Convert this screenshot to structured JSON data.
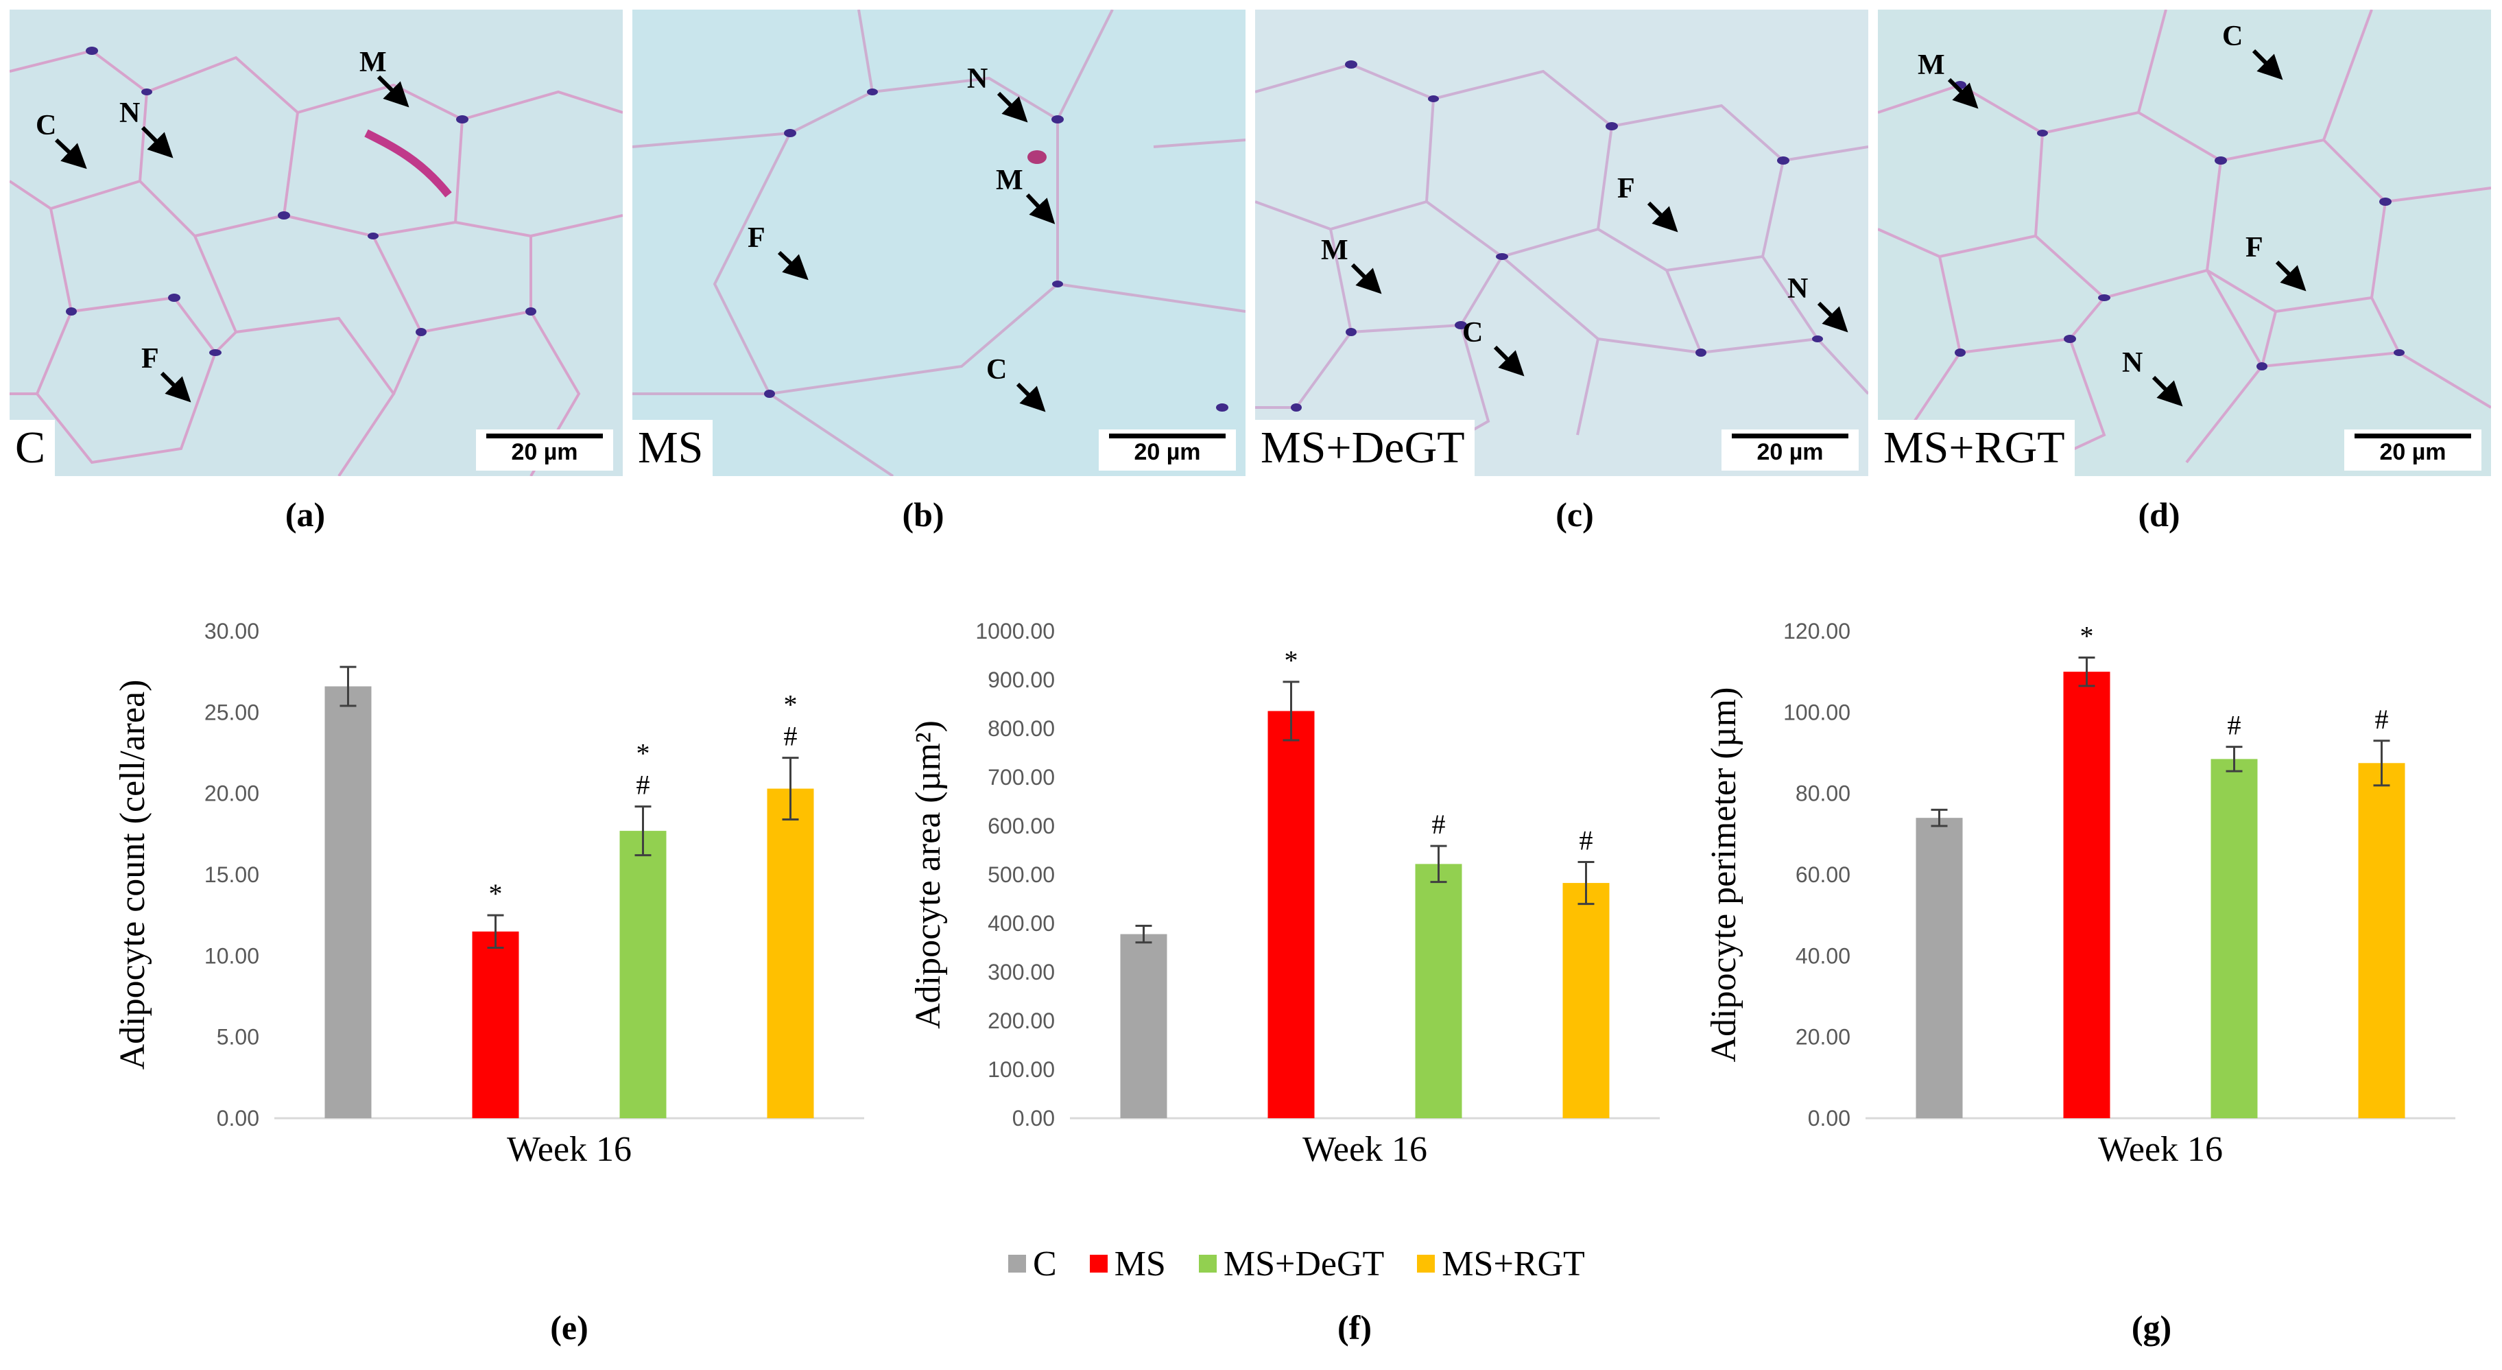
{
  "micrographs": [
    {
      "id": "a",
      "group": "C",
      "scale_bar": "20 µm",
      "arrows": [
        {
          "label": "C"
        },
        {
          "label": "N"
        },
        {
          "label": "M"
        },
        {
          "label": "F"
        }
      ]
    },
    {
      "id": "b",
      "group": "MS",
      "scale_bar": "20 µm",
      "arrows": [
        {
          "label": "N"
        },
        {
          "label": "M"
        },
        {
          "label": "F"
        },
        {
          "label": "C"
        }
      ]
    },
    {
      "id": "c",
      "group": "MS+DeGT",
      "scale_bar": "20 µm",
      "arrows": [
        {
          "label": "F"
        },
        {
          "label": "M"
        },
        {
          "label": "N"
        },
        {
          "label": "C"
        }
      ]
    },
    {
      "id": "d",
      "group": "MS+RGT",
      "scale_bar": "20 µm",
      "arrows": [
        {
          "label": "M"
        },
        {
          "label": "C"
        },
        {
          "label": "F"
        },
        {
          "label": "N"
        }
      ]
    }
  ],
  "panel_labels": [
    "(a)",
    "(b)",
    "(c)",
    "(d)",
    "(e)",
    "(f)",
    "(g)"
  ],
  "colors": {
    "C": "#a6a6a6",
    "MS": "#ff0000",
    "MS+DeGT": "#92d050",
    "MS+RGT": "#ffc000"
  },
  "legend": [
    {
      "name": "C",
      "color": "#a6a6a6"
    },
    {
      "name": "MS",
      "color": "#ff0000"
    },
    {
      "name": "MS+DeGT",
      "color": "#92d050"
    },
    {
      "name": "MS+RGT",
      "color": "#ffc000"
    }
  ],
  "chart_data": [
    {
      "type": "bar",
      "panel": "(e)",
      "ylabel": "Adipocyte count (cell/area)",
      "xlabel": "Week 16",
      "ylim": [
        0,
        30
      ],
      "ticks": [
        "0.00",
        "5.00",
        "10.00",
        "15.00",
        "20.00",
        "25.00",
        "30.00"
      ],
      "series": [
        {
          "name": "C",
          "value": 26.6,
          "error": 1.2,
          "marks": []
        },
        {
          "name": "MS",
          "value": 11.5,
          "error": 1.0,
          "marks": [
            "*"
          ]
        },
        {
          "name": "MS+DeGT",
          "value": 17.7,
          "error": 1.5,
          "marks": [
            "#",
            "*"
          ]
        },
        {
          "name": "MS+RGT",
          "value": 20.3,
          "error": 1.9,
          "marks": [
            "#",
            "*"
          ]
        }
      ]
    },
    {
      "type": "bar",
      "panel": "(f)",
      "ylabel": "Adipocyte area (µm²)",
      "xlabel": "Week 16",
      "ylim": [
        0,
        1000
      ],
      "ticks": [
        "0.00",
        "100.00",
        "200.00",
        "300.00",
        "400.00",
        "500.00",
        "600.00",
        "700.00",
        "800.00",
        "900.00",
        "1000.00"
      ],
      "series": [
        {
          "name": "C",
          "value": 378,
          "error": 17,
          "marks": []
        },
        {
          "name": "MS",
          "value": 836,
          "error": 60,
          "marks": [
            "*"
          ]
        },
        {
          "name": "MS+DeGT",
          "value": 522,
          "error": 37,
          "marks": [
            "#"
          ]
        },
        {
          "name": "MS+RGT",
          "value": 483,
          "error": 43,
          "marks": [
            "#"
          ]
        }
      ]
    },
    {
      "type": "bar",
      "panel": "(g)",
      "ylabel": "Adipocyte perimeter (µm)",
      "xlabel": "Week 16",
      "ylim": [
        0,
        120
      ],
      "ticks": [
        "0.00",
        "20.00",
        "40.00",
        "60.00",
        "80.00",
        "100.00",
        "120.00"
      ],
      "series": [
        {
          "name": "C",
          "value": 74,
          "error": 2,
          "marks": []
        },
        {
          "name": "MS",
          "value": 110,
          "error": 3.5,
          "marks": [
            "*"
          ]
        },
        {
          "name": "MS+DeGT",
          "value": 88.5,
          "error": 3,
          "marks": [
            "#"
          ]
        },
        {
          "name": "MS+RGT",
          "value": 87.5,
          "error": 5.5,
          "marks": [
            "#"
          ]
        }
      ]
    }
  ]
}
